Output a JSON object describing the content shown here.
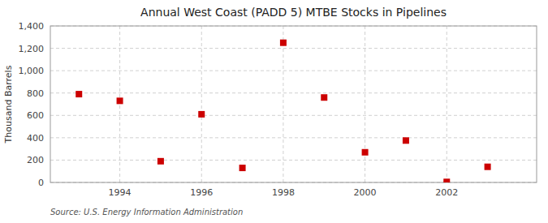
{
  "chart_data": {
    "type": "scatter",
    "title": "Annual West Coast (PADD 5) MTBE Stocks in Pipelines",
    "ylabel": "Thousand Barrels",
    "source": "Source: U.S. Energy Information Administration",
    "x": [
      1993,
      1994,
      1995,
      1996,
      1997,
      1998,
      1999,
      2000,
      2001,
      2002,
      2003
    ],
    "values": [
      790,
      730,
      190,
      610,
      130,
      1250,
      760,
      270,
      375,
      5,
      140
    ],
    "color": "#cc0000",
    "marker": "square",
    "xlim": [
      1992.3,
      2004.2
    ],
    "ylim": [
      0,
      1400
    ],
    "xticks": [
      1994,
      1996,
      1998,
      2000,
      2002
    ],
    "yticks": [
      0,
      200,
      400,
      600,
      800,
      {
        "value": 1000,
        "label": "1,000"
      },
      {
        "value": 1200,
        "label": "1,200"
      },
      {
        "value": 1400,
        "label": "1,400"
      }
    ],
    "grid": true
  }
}
